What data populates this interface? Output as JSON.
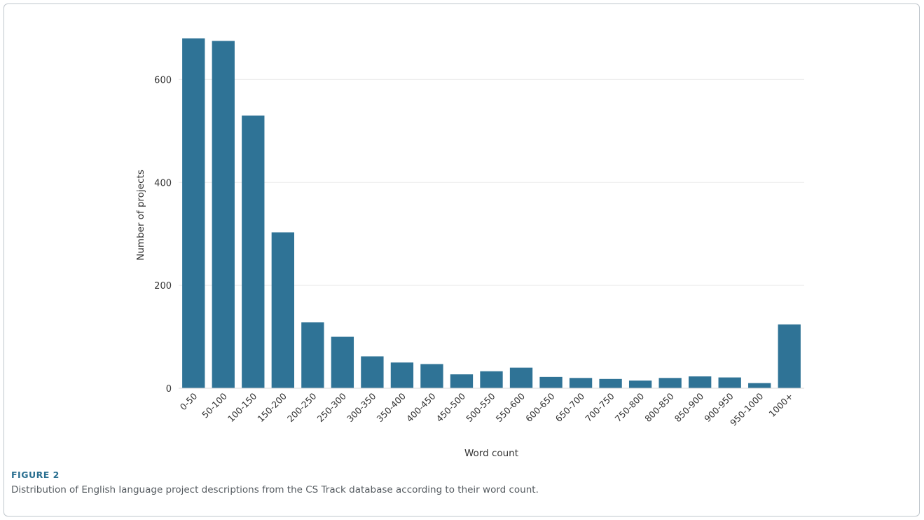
{
  "figure": {
    "label": "FIGURE 2",
    "caption": "Distribution of English language project descriptions from the CS Track database according to their word count."
  },
  "colors": {
    "bar": "#2f7396",
    "grid": "#ebebeb",
    "caption_label": "#2a6f90",
    "caption_text": "#555b60",
    "frame_border": "#bfc6cc"
  },
  "chart_data": {
    "type": "bar",
    "title": "",
    "xlabel": "Word count",
    "ylabel": "Number of projects",
    "ylim": [
      0,
      700
    ],
    "yticks": [
      0,
      200,
      400,
      600
    ],
    "grid": "horizontal",
    "legend": "none",
    "categories": [
      "0-50",
      "50-100",
      "100-150",
      "150-200",
      "200-250",
      "250-300",
      "300-350",
      "350-400",
      "400-450",
      "450-500",
      "500-550",
      "550-600",
      "600-650",
      "650-700",
      "700-750",
      "750-800",
      "800-850",
      "850-900",
      "900-950",
      "950-1000",
      "1000+"
    ],
    "values": [
      680,
      675,
      530,
      303,
      128,
      100,
      62,
      50,
      47,
      27,
      33,
      40,
      22,
      20,
      18,
      15,
      20,
      23,
      21,
      10,
      124
    ]
  }
}
